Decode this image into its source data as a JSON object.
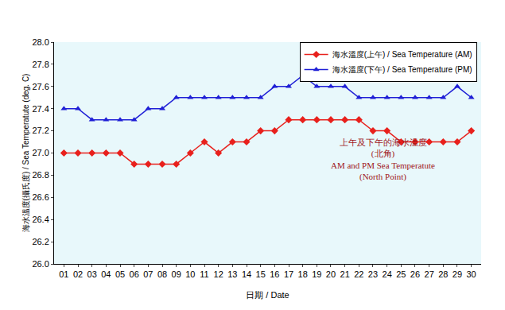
{
  "chart_data": {
    "type": "line",
    "x_label": "日期 / Date",
    "y_label": "海水溫度(攝氏度) / Sea Temperatute (deg. C)",
    "annotation": [
      "上午及下午的海水溫度",
      "(北角)",
      "AM and PM Sea Temperatute",
      "(North Point)"
    ],
    "categories": [
      "01",
      "02",
      "03",
      "04",
      "05",
      "06",
      "07",
      "08",
      "09",
      "10",
      "11",
      "12",
      "13",
      "14",
      "15",
      "16",
      "17",
      "18",
      "19",
      "20",
      "21",
      "22",
      "23",
      "24",
      "25",
      "26",
      "27",
      "28",
      "29",
      "30"
    ],
    "series": [
      {
        "name": "海水溫度(上午) / Sea Temperature (AM)",
        "color": "#e8201c",
        "marker": "diamond",
        "values": [
          27.0,
          27.0,
          27.0,
          27.0,
          27.0,
          26.9,
          26.9,
          26.9,
          26.9,
          27.0,
          27.1,
          27.0,
          27.1,
          27.1,
          27.2,
          27.2,
          27.3,
          27.3,
          27.3,
          27.3,
          27.3,
          27.3,
          27.2,
          27.2,
          27.1,
          27.1,
          27.1,
          27.1,
          27.1,
          27.2
        ]
      },
      {
        "name": "海水溫度(下午) / Sea Temperature (PM)",
        "color": "#1f1fd6",
        "marker": "triangle-up",
        "values": [
          27.4,
          27.4,
          27.3,
          27.3,
          27.3,
          27.3,
          27.4,
          27.4,
          27.5,
          27.5,
          27.5,
          27.5,
          27.5,
          27.5,
          27.5,
          27.6,
          27.6,
          27.7,
          27.6,
          27.6,
          27.6,
          27.5,
          27.5,
          27.5,
          27.5,
          27.5,
          27.5,
          27.5,
          27.6,
          27.5
        ]
      }
    ],
    "ylim": [
      26.0,
      28.0
    ],
    "yticks": [
      {
        "value": 26,
        "label": "26.0"
      },
      26.2,
      26.4,
      26.6,
      26.8,
      {
        "value": 27,
        "label": "27.0"
      },
      27.2,
      27.4,
      27.6,
      27.8,
      {
        "value": 28,
        "label": "28.0"
      }
    ],
    "grid": false,
    "legend": "top right"
  }
}
